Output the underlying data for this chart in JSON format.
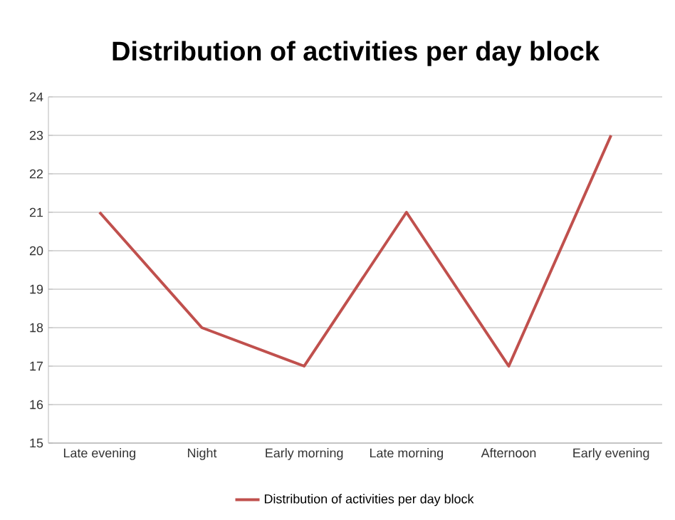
{
  "chart_data": {
    "type": "line",
    "title": "Distribution of activities per day block",
    "categories": [
      "Late evening",
      "Night",
      "Early morning",
      "Late morning",
      "Afternoon",
      "Early evening"
    ],
    "series": [
      {
        "name": "Distribution of activities per day block",
        "color": "#c0504d",
        "values": [
          21,
          18,
          17,
          21,
          17,
          23
        ]
      }
    ],
    "ylim": [
      15,
      24
    ],
    "yticks": [
      15,
      16,
      17,
      18,
      19,
      20,
      21,
      22,
      23,
      24
    ],
    "grid": "y",
    "legend": "bottom",
    "marker": "none",
    "line_style": "solid"
  }
}
